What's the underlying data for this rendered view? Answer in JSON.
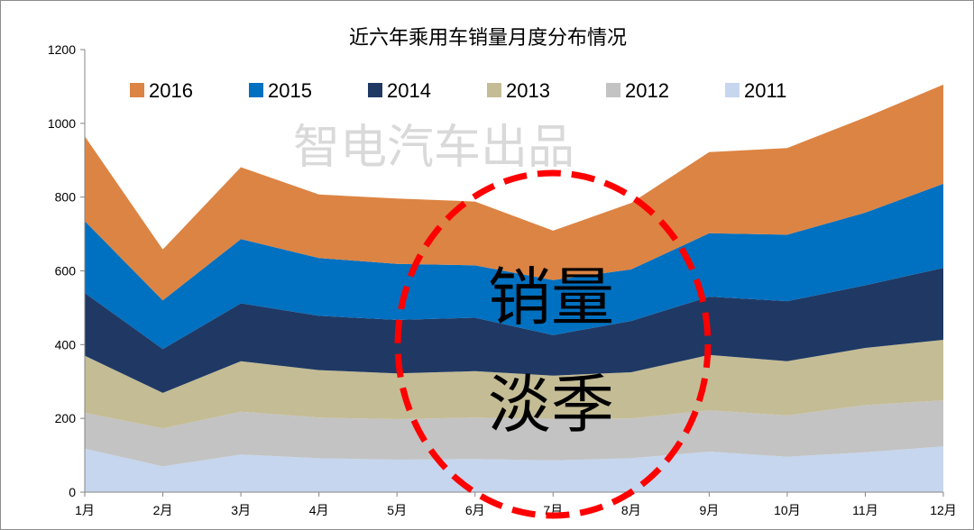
{
  "chart_data": {
    "type": "area",
    "stacked": true,
    "title": "近六年乘用车销量月度分布情况",
    "xlabel": "",
    "ylabel": "",
    "categories": [
      "1月",
      "2月",
      "3月",
      "4月",
      "5月",
      "6月",
      "7月",
      "8月",
      "9月",
      "10月",
      "11月",
      "12月"
    ],
    "ylim": [
      0,
      1200
    ],
    "yticks": [
      0,
      200,
      400,
      600,
      800,
      1000,
      1200
    ],
    "grid": false,
    "legend_position": "top",
    "series": [
      {
        "name": "2011",
        "color": "#c6d6ee",
        "values": [
          118,
          70,
          102,
          92,
          88,
          90,
          86,
          92,
          110,
          96,
          108,
          124
        ]
      },
      {
        "name": "2012",
        "color": "#c3c3c3",
        "values": [
          97,
          103,
          116,
          110,
          110,
          112,
          113,
          108,
          112,
          112,
          128,
          125
        ]
      },
      {
        "name": "2013",
        "color": "#c4bc95",
        "values": [
          155,
          96,
          137,
          129,
          124,
          126,
          117,
          125,
          150,
          147,
          155,
          164
        ]
      },
      {
        "name": "2014",
        "color": "#1f3964",
        "values": [
          170,
          119,
          157,
          147,
          145,
          145,
          110,
          139,
          158,
          163,
          170,
          195
        ]
      },
      {
        "name": "2015",
        "color": "#0070c0",
        "values": [
          195,
          132,
          174,
          157,
          152,
          142,
          149,
          140,
          172,
          180,
          197,
          228
        ]
      },
      {
        "name": "2016",
        "color": "#dc8443",
        "values": [
          230,
          138,
          195,
          172,
          177,
          173,
          134,
          180,
          220,
          235,
          258,
          269
        ]
      }
    ],
    "annotations": [
      "智电汽车出品",
      "销量",
      "淡季"
    ]
  },
  "annotation_style": {
    "circle_color": "#ff0000"
  }
}
